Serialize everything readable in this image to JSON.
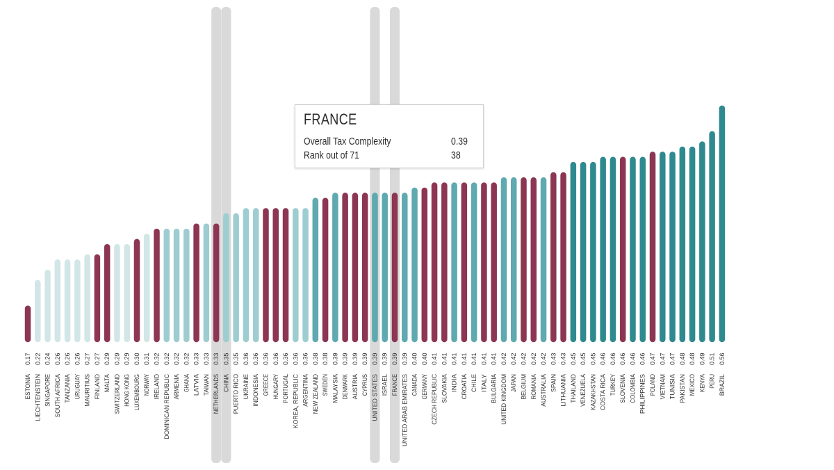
{
  "chart_data": {
    "type": "bar",
    "categories": [
      "ESTONIA",
      "LIECHTENSTEIN",
      "SINGAPORE",
      "SOUTH AFRICA",
      "TANZANIA",
      "URUGUAY",
      "MAURITIUS",
      "FINLAND",
      "MALTA",
      "SWITZERLAND",
      "HONG KONG",
      "LUXEMBOURG",
      "NORWAY",
      "IRELAND",
      "DOMINICAN REPUBLIC",
      "ARMENIA",
      "GHANA",
      "LATVIA",
      "TAIWAN",
      "NETHERLANDS",
      "CHINA",
      "PUERTO RICO",
      "UKRAINE",
      "INDONESIA",
      "GREECE",
      "HUNGARY",
      "PORTUGAL",
      "KOREA, REPUBLIC",
      "ARGENTINA",
      "NEW ZEALAND",
      "SWEDEN",
      "MALAYSIA",
      "DENMARK",
      "AUSTRIA",
      "CYPRUS",
      "UNITED STATES",
      "ISRAEL",
      "FRANCE",
      "UNITED ARAB EMIRATES",
      "CANADA",
      "GERMANY",
      "CZECH REPUBLIC",
      "SLOVAKIA",
      "INDIA",
      "CROATIA",
      "CHILE",
      "ITALY",
      "BULGARIA",
      "UNITED KINGDOM",
      "JAPAN",
      "BELGIUM",
      "ROMANIA",
      "AUSTRALIA",
      "SPAIN",
      "LITHUANIA",
      "THAILAND",
      "VENEZUELA",
      "KAZAKHSTAN",
      "COSTA RICA",
      "TURKEY",
      "SLOVENIA",
      "COLOMBIA",
      "PHILIPPINES",
      "POLAND",
      "VIETNAM",
      "TUNISIA",
      "PAKISTAN",
      "MEXICO",
      "KENYA",
      "PERU",
      "BRAZIL"
    ],
    "values": [
      0.17,
      0.22,
      0.24,
      0.26,
      0.26,
      0.26,
      0.27,
      0.27,
      0.29,
      0.29,
      0.29,
      0.3,
      0.31,
      0.32,
      0.32,
      0.32,
      0.32,
      0.33,
      0.33,
      0.33,
      0.35,
      0.35,
      0.36,
      0.36,
      0.36,
      0.36,
      0.36,
      0.36,
      0.36,
      0.38,
      0.38,
      0.39,
      0.39,
      0.39,
      0.39,
      0.39,
      0.39,
      0.39,
      0.39,
      0.4,
      0.4,
      0.41,
      0.41,
      0.41,
      0.41,
      0.41,
      0.41,
      0.41,
      0.42,
      0.42,
      0.42,
      0.42,
      0.42,
      0.43,
      0.43,
      0.45,
      0.45,
      0.45,
      0.46,
      0.46,
      0.46,
      0.46,
      0.46,
      0.47,
      0.47,
      0.47,
      0.48,
      0.48,
      0.49,
      0.51,
      0.56
    ],
    "value_labels": [
      "0.17",
      "0.22",
      "0.24",
      "0.26",
      "0.26",
      "0.26",
      "0.27",
      "0.27",
      "0.29",
      "0.29",
      "0.29",
      "0.30",
      "0.31",
      "0.32",
      "0.32",
      "0.32",
      "0.32",
      "0.33",
      "0.33",
      "0.33",
      "0.35",
      "0.35",
      "0.36",
      "0.36",
      "0.36",
      "0.36",
      "0.36",
      "0.36",
      "0.36",
      "0.38",
      "0.38",
      "0.39",
      "0.39",
      "0.39",
      "0.39",
      "0.39",
      "0.39",
      "0.39",
      "0.39",
      "0.40",
      "0.40",
      "0.41",
      "0.41",
      "0.41",
      "0.41",
      "0.41",
      "0.41",
      "0.41",
      "0.42",
      "0.42",
      "0.42",
      "0.42",
      "0.42",
      "0.43",
      "0.43",
      "0.45",
      "0.45",
      "0.45",
      "0.46",
      "0.46",
      "0.46",
      "0.46",
      "0.46",
      "0.47",
      "0.47",
      "0.47",
      "0.48",
      "0.48",
      "0.49",
      "0.51",
      "0.56"
    ],
    "bar_colors": [
      "#8c3653",
      "#d2e6e7",
      "#d2e6e7",
      "#d2e6e7",
      "#d2e6e7",
      "#d2e6e7",
      "#d2e6e7",
      "#8c3653",
      "#8c3653",
      "#d2e6e7",
      "#d2e6e7",
      "#8c3653",
      "#d2e6e7",
      "#8c3653",
      "#9dcdd0",
      "#9dcdd0",
      "#9dcdd0",
      "#8c3653",
      "#9dcdd0",
      "#8c3653",
      "#9dcdd0",
      "#9dcdd0",
      "#9dcdd0",
      "#9dcdd0",
      "#8c3653",
      "#8c3653",
      "#8c3653",
      "#9dcdd0",
      "#9dcdd0",
      "#5fa9b0",
      "#8c3653",
      "#5fa9b0",
      "#8c3653",
      "#8c3653",
      "#8c3653",
      "#5fa9b0",
      "#5fa9b0",
      "#8c3653",
      "#5fa9b0",
      "#5fa9b0",
      "#8c3653",
      "#8c3653",
      "#8c3653",
      "#5fa9b0",
      "#8c3653",
      "#5fa9b0",
      "#8c3653",
      "#8c3653",
      "#5fa9b0",
      "#5fa9b0",
      "#8c3653",
      "#8c3653",
      "#5fa9b0",
      "#8c3653",
      "#8c3653",
      "#2f8a8f",
      "#2f8a8f",
      "#2f8a8f",
      "#2f8a8f",
      "#2f8a8f",
      "#8c3653",
      "#2f8a8f",
      "#2f8a8f",
      "#8c3653",
      "#2f8a8f",
      "#2f8a8f",
      "#2f8a8f",
      "#2f8a8f",
      "#2f8a8f",
      "#2f8a8f",
      "#2f8a8f"
    ],
    "highlighted": [
      "NETHERLANDS",
      "CHINA",
      "UNITED STATES",
      "FRANCE"
    ],
    "ylim": [
      0,
      0.56
    ],
    "grid": false,
    "legend": "none"
  },
  "tooltip": {
    "country": "FRANCE",
    "metric_label": "Overall Tax Complexity",
    "metric_value": "0.39",
    "rank_label": "Rank out of 71",
    "rank_value": "38"
  },
  "colors": {
    "maroon": "#8c3653",
    "pale_teal": "#d2e6e7",
    "light_teal": "#9dcdd0",
    "medium_teal": "#5fa9b0",
    "dark_teal": "#2f8a8f",
    "highlight_band": "#d9d9d9",
    "label_text": "#333333"
  }
}
